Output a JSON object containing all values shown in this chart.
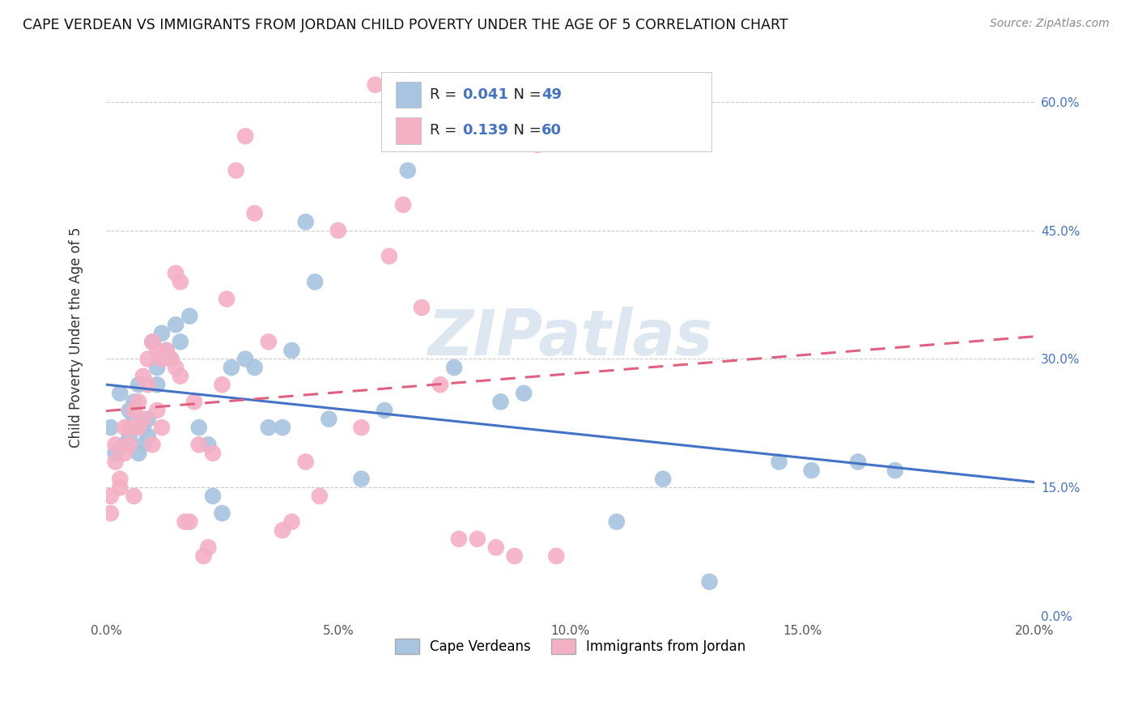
{
  "title": "CAPE VERDEAN VS IMMIGRANTS FROM JORDAN CHILD POVERTY UNDER THE AGE OF 5 CORRELATION CHART",
  "source": "Source: ZipAtlas.com",
  "ylabel": "Child Poverty Under the Age of 5",
  "xlim": [
    0.0,
    0.2
  ],
  "ylim": [
    0.0,
    0.65
  ],
  "xticks": [
    0.0,
    0.05,
    0.1,
    0.15,
    0.2
  ],
  "xtick_labels": [
    "0.0%",
    "5.0%",
    "10.0%",
    "15.0%",
    "20.0%"
  ],
  "yticks": [
    0.0,
    0.15,
    0.3,
    0.45,
    0.6
  ],
  "ytick_labels_right": [
    "0.0%",
    "15.0%",
    "30.0%",
    "45.0%",
    "60.0%"
  ],
  "blue_R": "0.041",
  "blue_N": "49",
  "pink_R": "0.139",
  "pink_N": "60",
  "legend_label_blue": "Cape Verdeans",
  "legend_label_pink": "Immigrants from Jordan",
  "blue_scatter_color": "#a8c4e0",
  "pink_scatter_color": "#f4b0c4",
  "trend_blue_color": "#4472c4",
  "trend_pink_color": "#e06080",
  "watermark": "ZIPatlas",
  "blue_scatter_x": [
    0.001,
    0.002,
    0.003,
    0.004,
    0.005,
    0.005,
    0.006,
    0.006,
    0.007,
    0.007,
    0.008,
    0.008,
    0.009,
    0.009,
    0.01,
    0.011,
    0.011,
    0.012,
    0.013,
    0.014,
    0.015,
    0.016,
    0.018,
    0.02,
    0.022,
    0.023,
    0.025,
    0.027,
    0.03,
    0.032,
    0.035,
    0.038,
    0.04,
    0.043,
    0.045,
    0.048,
    0.055,
    0.06,
    0.065,
    0.075,
    0.085,
    0.09,
    0.11,
    0.12,
    0.13,
    0.145,
    0.152,
    0.162,
    0.17
  ],
  "blue_scatter_y": [
    0.22,
    0.19,
    0.26,
    0.2,
    0.24,
    0.21,
    0.23,
    0.25,
    0.27,
    0.19,
    0.22,
    0.2,
    0.21,
    0.23,
    0.32,
    0.29,
    0.27,
    0.33,
    0.31,
    0.3,
    0.34,
    0.32,
    0.35,
    0.22,
    0.2,
    0.14,
    0.12,
    0.29,
    0.3,
    0.29,
    0.22,
    0.22,
    0.31,
    0.46,
    0.39,
    0.23,
    0.16,
    0.24,
    0.52,
    0.29,
    0.25,
    0.26,
    0.11,
    0.16,
    0.04,
    0.18,
    0.17,
    0.18,
    0.17
  ],
  "pink_scatter_x": [
    0.001,
    0.001,
    0.002,
    0.002,
    0.003,
    0.003,
    0.004,
    0.004,
    0.005,
    0.005,
    0.006,
    0.006,
    0.007,
    0.007,
    0.008,
    0.008,
    0.009,
    0.009,
    0.01,
    0.01,
    0.011,
    0.011,
    0.012,
    0.012,
    0.013,
    0.014,
    0.015,
    0.015,
    0.016,
    0.016,
    0.017,
    0.018,
    0.019,
    0.02,
    0.021,
    0.022,
    0.023,
    0.025,
    0.026,
    0.028,
    0.03,
    0.032,
    0.035,
    0.038,
    0.04,
    0.043,
    0.046,
    0.05,
    0.055,
    0.058,
    0.061,
    0.064,
    0.068,
    0.072,
    0.076,
    0.08,
    0.084,
    0.088,
    0.093,
    0.097
  ],
  "pink_scatter_y": [
    0.12,
    0.14,
    0.2,
    0.18,
    0.15,
    0.16,
    0.22,
    0.19,
    0.2,
    0.22,
    0.24,
    0.14,
    0.22,
    0.25,
    0.23,
    0.28,
    0.27,
    0.3,
    0.32,
    0.2,
    0.31,
    0.24,
    0.3,
    0.22,
    0.31,
    0.3,
    0.4,
    0.29,
    0.39,
    0.28,
    0.11,
    0.11,
    0.25,
    0.2,
    0.07,
    0.08,
    0.19,
    0.27,
    0.37,
    0.52,
    0.56,
    0.47,
    0.32,
    0.1,
    0.11,
    0.18,
    0.14,
    0.45,
    0.22,
    0.62,
    0.42,
    0.48,
    0.36,
    0.27,
    0.09,
    0.09,
    0.08,
    0.07,
    0.55,
    0.07
  ]
}
